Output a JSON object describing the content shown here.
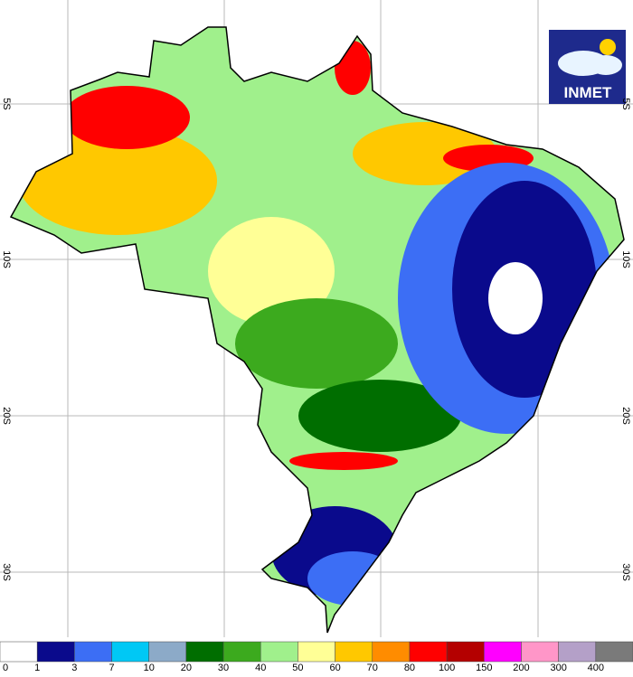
{
  "logo": {
    "text": "INMET"
  },
  "map": {
    "lat_labels": [
      "5S",
      "10S",
      "20S",
      "30S"
    ]
  },
  "colorbar": {
    "levels": [
      0,
      1,
      3,
      7,
      10,
      20,
      30,
      40,
      50,
      60,
      70,
      80,
      100,
      150,
      200,
      300,
      400
    ],
    "colors": [
      "#ffffff",
      "#0a0a8c",
      "#3c6ef5",
      "#00c8f5",
      "#8caac8",
      "#006e00",
      "#3caa1e",
      "#a0f08c",
      "#ffff96",
      "#ffc800",
      "#ff8c00",
      "#ff0000",
      "#b40000",
      "#ff00ff",
      "#ff96c8",
      "#b4a0c8",
      "#7a7a7a"
    ]
  }
}
